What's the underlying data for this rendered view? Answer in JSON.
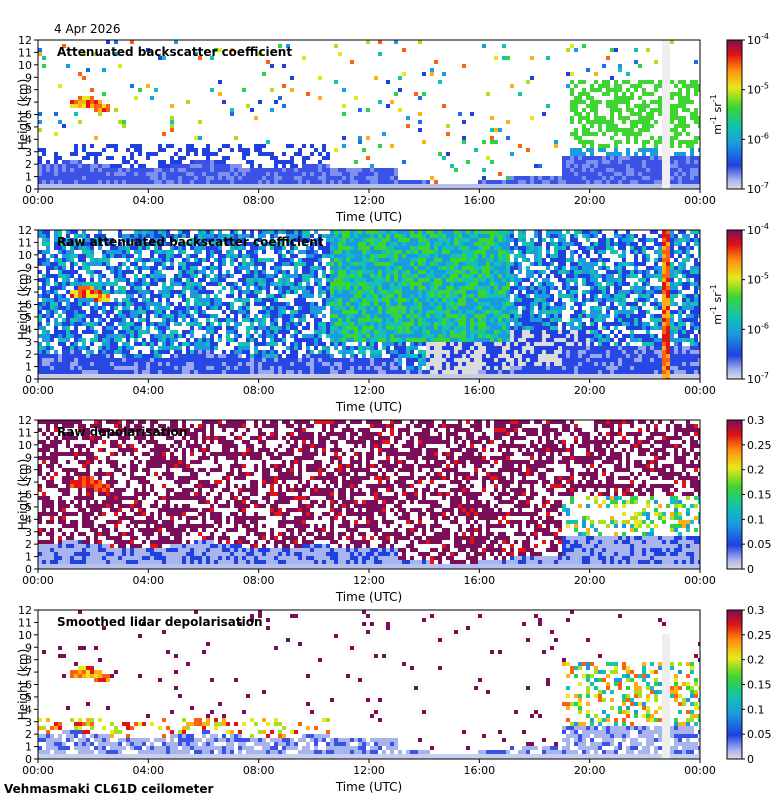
{
  "date": "4 Apr 2026",
  "footer": "Vehmasmaki CL61D ceilometer",
  "chart_data": [
    {
      "type": "heatmap",
      "title": "Attenuated backscatter coefficient",
      "xlabel": "Time (UTC)",
      "ylabel": "Height (km)",
      "x_ticks": [
        "00:00",
        "04:00",
        "08:00",
        "12:00",
        "16:00",
        "20:00",
        "00:00"
      ],
      "y_ticks": [
        "0",
        "1",
        "2",
        "3",
        "4",
        "5",
        "6",
        "7",
        "8",
        "9",
        "10",
        "11",
        "12"
      ],
      "ylim": [
        0,
        12
      ],
      "colorbar": {
        "scale": "log",
        "range": [
          1e-07,
          0.0001
        ],
        "ticks": [
          "10",
          "10",
          "10",
          "10"
        ],
        "tick_exponents": [
          "-7",
          "-6",
          "-5",
          "-4"
        ],
        "unit": "m",
        "unit_exp1": "-1",
        "unit_mid": " sr",
        "unit_exp2": "-1"
      }
    },
    {
      "type": "heatmap",
      "title": "Raw attenuated backscatter coefficient",
      "xlabel": "Time (UTC)",
      "ylabel": "Height (km)",
      "x_ticks": [
        "00:00",
        "04:00",
        "08:00",
        "12:00",
        "16:00",
        "20:00",
        "00:00"
      ],
      "y_ticks": [
        "0",
        "1",
        "2",
        "3",
        "4",
        "5",
        "6",
        "7",
        "8",
        "9",
        "10",
        "11",
        "12"
      ],
      "ylim": [
        0,
        12
      ],
      "colorbar": {
        "scale": "log",
        "range": [
          1e-07,
          0.0001
        ],
        "ticks": [
          "10",
          "10",
          "10",
          "10"
        ],
        "tick_exponents": [
          "-7",
          "-6",
          "-5",
          "-4"
        ],
        "unit": "m",
        "unit_exp1": "-1",
        "unit_mid": " sr",
        "unit_exp2": "-1"
      }
    },
    {
      "type": "heatmap",
      "title": "Raw depolarisation",
      "xlabel": "Time (UTC)",
      "ylabel": "Height (km)",
      "x_ticks": [
        "00:00",
        "04:00",
        "08:00",
        "12:00",
        "16:00",
        "20:00",
        "00:00"
      ],
      "y_ticks": [
        "0",
        "1",
        "2",
        "3",
        "4",
        "5",
        "6",
        "7",
        "8",
        "9",
        "10",
        "11",
        "12"
      ],
      "ylim": [
        0,
        12
      ],
      "colorbar": {
        "scale": "linear",
        "range": [
          0,
          0.3
        ],
        "ticks": [
          "0",
          "0.05",
          "0.1",
          "0.15",
          "0.2",
          "0.25",
          "0.3"
        ]
      }
    },
    {
      "type": "heatmap",
      "title": "Smoothed lidar depolarisation",
      "xlabel": "Time (UTC)",
      "ylabel": "Height (km)",
      "x_ticks": [
        "00:00",
        "04:00",
        "08:00",
        "12:00",
        "16:00",
        "20:00",
        "00:00"
      ],
      "y_ticks": [
        "0",
        "1",
        "2",
        "3",
        "4",
        "5",
        "6",
        "7",
        "8",
        "9",
        "10",
        "11",
        "12"
      ],
      "ylim": [
        0,
        12
      ],
      "colorbar": {
        "scale": "linear",
        "range": [
          0,
          0.3
        ],
        "ticks": [
          "0",
          "0.05",
          "0.1",
          "0.15",
          "0.2",
          "0.25",
          "0.3"
        ]
      }
    }
  ]
}
